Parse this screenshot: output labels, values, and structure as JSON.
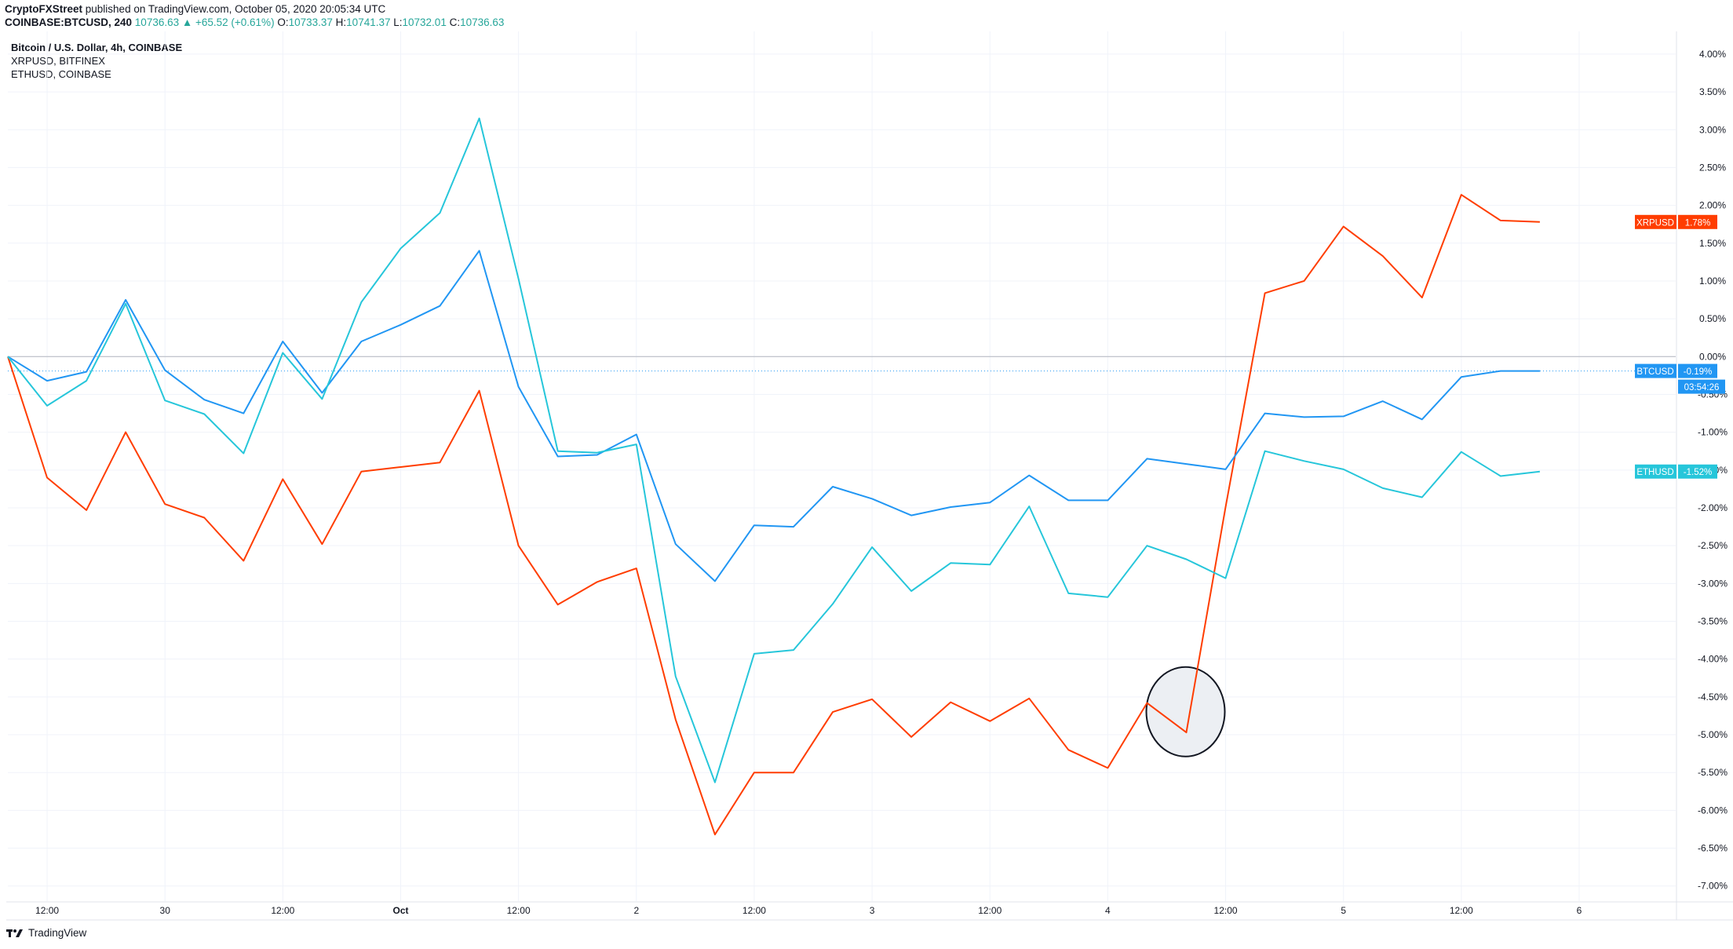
{
  "header": {
    "publisher": "CryptoFXStreet",
    "published_text": "published on TradingView.com, October 05, 2020 20:05:34 UTC",
    "symbol": "COINBASE:BTCUSD, 240",
    "last": "10736.63",
    "change": "▲ +65.52 (+0.61%)",
    "o_label": "O:",
    "o_value": "10733.37",
    "h_label": "H:",
    "h_value": "10741.37",
    "l_label": "L:",
    "l_value": "10732.01",
    "c_label": "C:",
    "c_value": "10736.63"
  },
  "legend": {
    "main": "Bitcoin / U.S. Dollar, 4h, COINBASE",
    "series2": "XRPUSD, BITFINEX",
    "series3": "ETHUSD, COINBASE"
  },
  "footer": {
    "brand": "TradingView"
  },
  "colors": {
    "btc": "#2196f3",
    "xrp": "#ff3d00",
    "eth": "#26c6da",
    "grid": "#f0f3fa",
    "axis_text": "#131722"
  },
  "chart_data": {
    "type": "line",
    "y_unit": "%",
    "ylim": [
      -7.2,
      4.3
    ],
    "y_ticks": [
      "4.00%",
      "3.50%",
      "3.00%",
      "2.50%",
      "2.00%",
      "1.50%",
      "1.00%",
      "0.50%",
      "0.00%",
      "-0.50%",
      "-1.00%",
      "-1.50%",
      "-2.00%",
      "-2.50%",
      "-3.00%",
      "-3.50%",
      "-4.00%",
      "-4.50%",
      "-5.00%",
      "-5.50%",
      "-6.00%",
      "-6.50%",
      "-7.00%"
    ],
    "x_ticks": [
      {
        "label": "12:00",
        "i": 1
      },
      {
        "label": "30",
        "i": 4
      },
      {
        "label": "12:00",
        "i": 7
      },
      {
        "label": "Oct",
        "i": 10
      },
      {
        "label": "12:00",
        "i": 13
      },
      {
        "label": "2",
        "i": 16
      },
      {
        "label": "12:00",
        "i": 19
      },
      {
        "label": "3",
        "i": 22
      },
      {
        "label": "12:00",
        "i": 25
      },
      {
        "label": "4",
        "i": 28
      },
      {
        "label": "12:00",
        "i": 31
      },
      {
        "label": "5",
        "i": 34
      },
      {
        "label": "12:00",
        "i": 37
      },
      {
        "label": "6",
        "i": 40
      }
    ],
    "grid": true,
    "series": [
      {
        "name": "BTCUSD",
        "color": "#2196f3",
        "label": "BTCUSD",
        "last_value": "-0.19%",
        "timer": "03:54:26",
        "values": [
          0.0,
          -0.32,
          -0.2,
          0.75,
          -0.18,
          -0.57,
          -0.75,
          0.2,
          -0.48,
          0.2,
          0.42,
          0.67,
          1.4,
          -0.4,
          -1.32,
          -1.3,
          -1.03,
          -2.48,
          -2.97,
          -2.23,
          -2.25,
          -1.72,
          -1.88,
          -2.1,
          -1.99,
          -1.93,
          -1.57,
          -1.9,
          -1.9,
          -1.35,
          -1.42,
          -1.49,
          -0.75,
          -0.8,
          -0.79,
          -0.59,
          -0.83,
          -0.27,
          -0.19,
          -0.19
        ]
      },
      {
        "name": "XRPUSD",
        "color": "#ff3d00",
        "label": "XRPUSD",
        "last_value": "1.78%",
        "values": [
          0.0,
          -1.6,
          -2.03,
          -1.0,
          -1.95,
          -2.13,
          -2.7,
          -1.62,
          -2.48,
          -1.52,
          -1.46,
          -1.4,
          -0.45,
          -2.5,
          -3.28,
          -2.98,
          -2.8,
          -4.8,
          -6.32,
          -5.5,
          -5.5,
          -4.7,
          -4.53,
          -5.03,
          -4.57,
          -4.82,
          -4.52,
          -5.2,
          -5.44,
          -4.58,
          -4.97,
          -1.99,
          0.84,
          1.0,
          1.72,
          1.33,
          0.78,
          2.14,
          1.8,
          1.78
        ]
      },
      {
        "name": "ETHUSD",
        "color": "#26c6da",
        "label": "ETHUSD",
        "last_value": "-1.52%",
        "values": [
          0.0,
          -0.65,
          -0.32,
          0.7,
          -0.58,
          -0.76,
          -1.28,
          0.05,
          -0.56,
          0.72,
          1.43,
          1.9,
          3.15,
          1.03,
          -1.25,
          -1.27,
          -1.16,
          -4.23,
          -5.63,
          -3.93,
          -3.88,
          -3.27,
          -2.52,
          -3.1,
          -2.73,
          -2.75,
          -1.98,
          -3.13,
          -3.18,
          -2.5,
          -2.68,
          -2.93,
          -1.25,
          -1.38,
          -1.49,
          -1.74,
          -1.86,
          -1.26,
          -1.58,
          -1.52
        ]
      }
    ],
    "annotation": {
      "type": "ellipse",
      "i": 30,
      "value": -4.8
    }
  }
}
